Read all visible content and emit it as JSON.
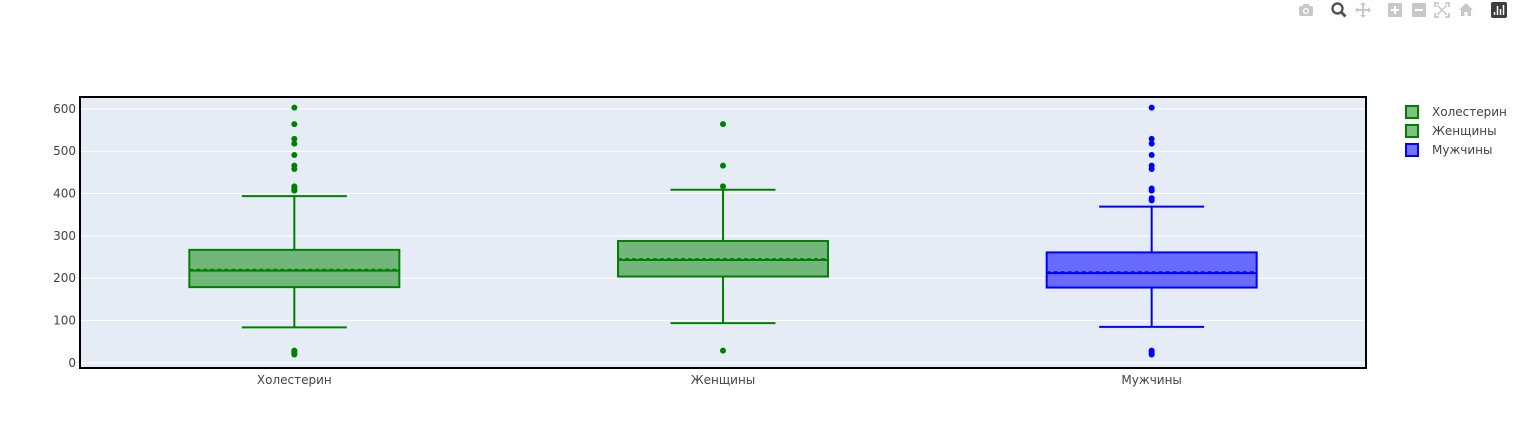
{
  "modebar": {
    "buttons": [
      {
        "name": "camera-icon",
        "title": "Download plot as a png"
      },
      {
        "name": "zoom-icon",
        "title": "Zoom"
      },
      {
        "name": "pan-icon",
        "title": "Pan"
      },
      {
        "name": "zoom-in-icon",
        "title": "Zoom in"
      },
      {
        "name": "zoom-out-icon",
        "title": "Zoom out"
      },
      {
        "name": "autoscale-icon",
        "title": "Autoscale"
      },
      {
        "name": "home-icon",
        "title": "Reset axes"
      },
      {
        "name": "plotly-logo-icon",
        "title": "Produced with Plotly"
      }
    ],
    "active": "zoom-icon"
  },
  "chart_data": {
    "type": "box",
    "title": "",
    "xlabel": "",
    "ylabel": "",
    "ylim": [
      -12,
      628
    ],
    "y_ticks": [
      0,
      100,
      200,
      300,
      400,
      500,
      600
    ],
    "categories": [
      "Холестерин",
      "Женщины",
      "Мужчины"
    ],
    "grid": true,
    "legend_position": "right",
    "plot_bgcolor": "#e5ecf6",
    "series": [
      {
        "name": "Холестерин",
        "color": "#008000",
        "fill": "rgba(0,128,0,0.5)",
        "q1": 179,
        "median": 218,
        "q3": 267,
        "mean": 220,
        "lower_fence": 84,
        "upper_fence": 394,
        "outliers": [
          603,
          564,
          529,
          518,
          491,
          466,
          458,
          417,
          412,
          409,
          407,
          29,
          26,
          22,
          20
        ]
      },
      {
        "name": "Женщины",
        "color": "#008000",
        "fill": "rgba(0,128,0,0.5)",
        "q1": 204,
        "median": 243,
        "q3": 288,
        "mean": 245,
        "lower_fence": 94,
        "upper_fence": 409,
        "outliers": [
          564,
          466,
          417,
          29
        ]
      },
      {
        "name": "Мужчины",
        "color": "#0000ff",
        "fill": "rgba(0,0,255,0.55)",
        "q1": 178,
        "median": 212,
        "q3": 261,
        "mean": 214,
        "lower_fence": 85,
        "upper_fence": 369,
        "outliers": [
          603,
          529,
          518,
          491,
          466,
          458,
          412,
          407,
          389,
          384,
          29,
          26,
          22,
          20
        ]
      }
    ]
  }
}
